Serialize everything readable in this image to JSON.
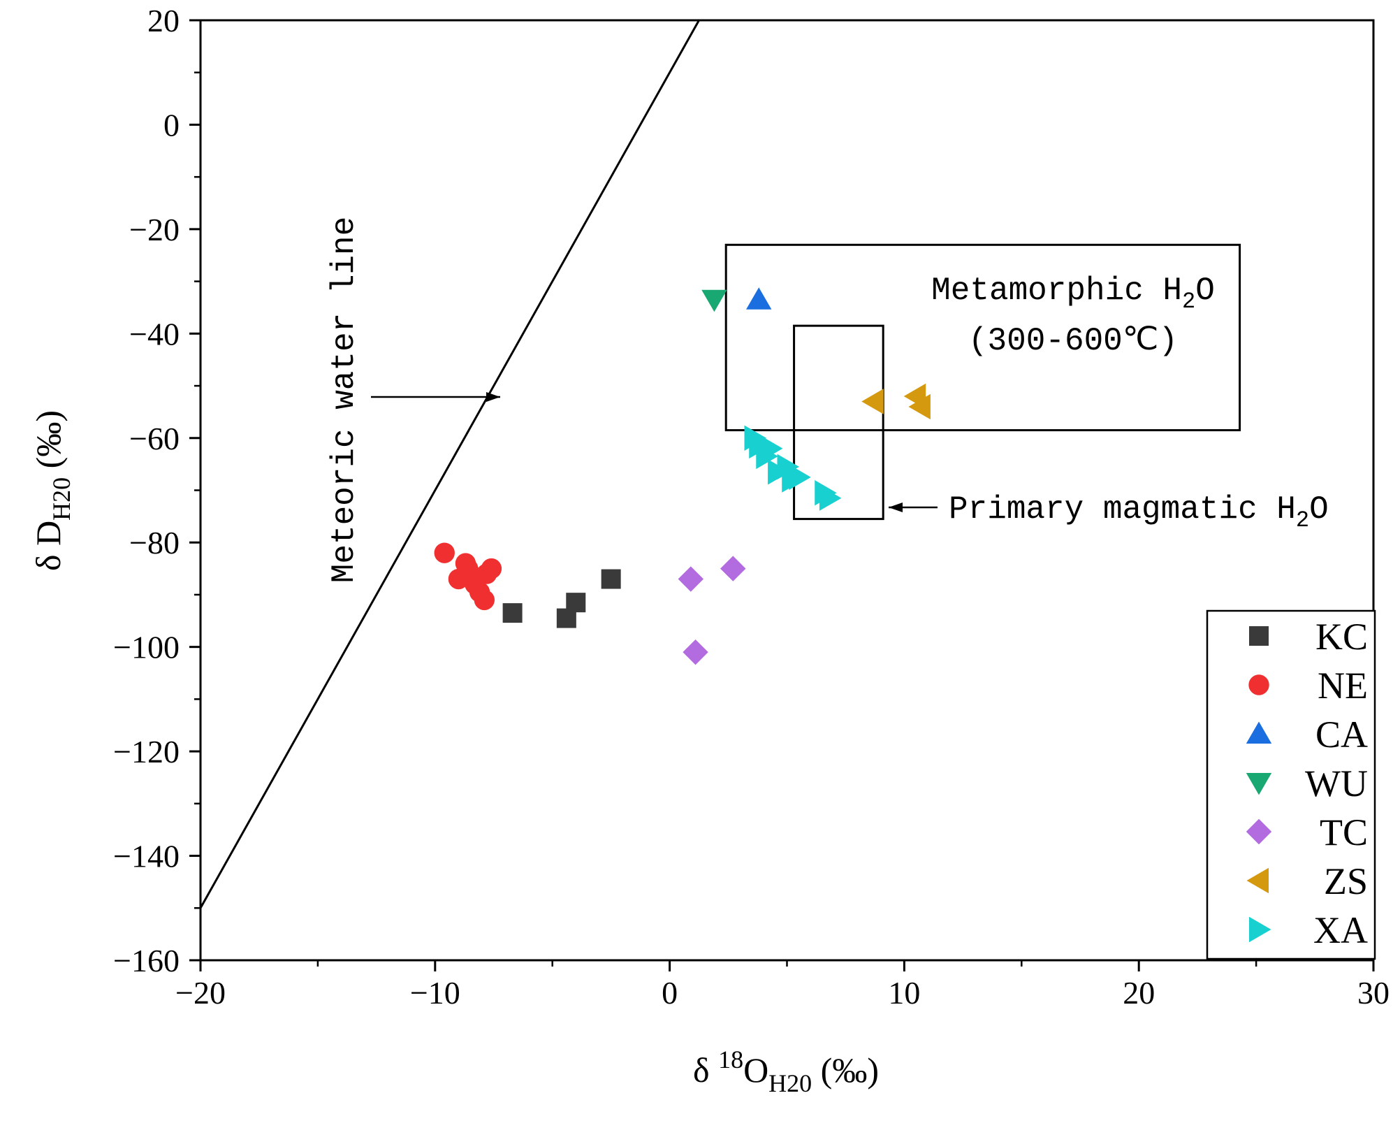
{
  "chart_data": {
    "type": "scatter",
    "xlim": [
      -20,
      30
    ],
    "ylim": [
      -160,
      20
    ],
    "xticks": [
      -20,
      -10,
      0,
      10,
      20,
      30
    ],
    "yticks": [
      20,
      0,
      -20,
      -40,
      -60,
      -80,
      -100,
      -120,
      -140,
      -160
    ],
    "xtick_labels": [
      "−20",
      "−10",
      "0",
      "10",
      "20",
      "30"
    ],
    "ytick_labels": [
      "20",
      "0",
      "−20",
      "−40",
      "−60",
      "−80",
      "−100",
      "−120",
      "−140",
      "−160"
    ],
    "xlabel": {
      "prefix": "δ ",
      "sup": "18",
      "main": "O",
      "sub": "H20",
      "suffix": " (‰)"
    },
    "ylabel": {
      "prefix": "δ D",
      "sub": "H20",
      "suffix": " (‰)"
    },
    "meteoric_line": {
      "label": "Meteoric water line",
      "slope": 8,
      "intercept": 10
    },
    "regions": [
      {
        "name": "Metamorphic H2O",
        "text1": "Metamorphic H",
        "sub": "2",
        "text1_end": "O",
        "text2": "(300-600℃)",
        "x": [
          2.4,
          24.3
        ],
        "y": [
          -58.5,
          -23
        ]
      },
      {
        "name": "Primary magmatic H2O",
        "text": "Primary magmatic H",
        "sub": "2",
        "text_end": "O",
        "x": [
          5.3,
          9.1
        ],
        "y": [
          -75.5,
          -38.5
        ]
      }
    ],
    "series": [
      {
        "name": "KC",
        "marker": "square",
        "color": "#3a3a3a",
        "points": [
          [
            -6.7,
            -93.5
          ],
          [
            -4.4,
            -94.5
          ],
          [
            -4.0,
            -91.5
          ],
          [
            -2.5,
            -87
          ]
        ]
      },
      {
        "name": "NE",
        "marker": "circle",
        "color": "#f03030",
        "points": [
          [
            -9.6,
            -82
          ],
          [
            -9.0,
            -87
          ],
          [
            -8.7,
            -84
          ],
          [
            -8.5,
            -86
          ],
          [
            -8.3,
            -88
          ],
          [
            -8.1,
            -89.5
          ],
          [
            -7.9,
            -91
          ],
          [
            -7.8,
            -86
          ],
          [
            -7.6,
            -85
          ],
          [
            -8.6,
            -85
          ]
        ]
      },
      {
        "name": "CA",
        "marker": "triangle-up",
        "color": "#1a6ee0",
        "points": [
          [
            3.8,
            -33.5
          ]
        ]
      },
      {
        "name": "WU",
        "marker": "triangle-down",
        "color": "#1aa872",
        "points": [
          [
            1.9,
            -33.5
          ]
        ]
      },
      {
        "name": "TC",
        "marker": "diamond",
        "color": "#b36be0",
        "points": [
          [
            0.9,
            -87
          ],
          [
            2.7,
            -85
          ],
          [
            1.1,
            -101
          ]
        ]
      },
      {
        "name": "ZS",
        "marker": "triangle-left",
        "color": "#d4990f",
        "points": [
          [
            8.7,
            -53
          ],
          [
            10.5,
            -52
          ],
          [
            10.7,
            -54
          ]
        ]
      },
      {
        "name": "XA",
        "marker": "triangle-right",
        "color": "#18d0d0",
        "points": [
          [
            3.6,
            -60
          ],
          [
            3.8,
            -61.5
          ],
          [
            4.1,
            -63.5
          ],
          [
            4.3,
            -62
          ],
          [
            4.6,
            -66.5
          ],
          [
            5.0,
            -65.5
          ],
          [
            5.2,
            -68
          ],
          [
            5.5,
            -67.5
          ],
          [
            6.6,
            -70.5
          ],
          [
            6.8,
            -71.5
          ]
        ]
      }
    ],
    "legend_position": "bottom-right"
  }
}
